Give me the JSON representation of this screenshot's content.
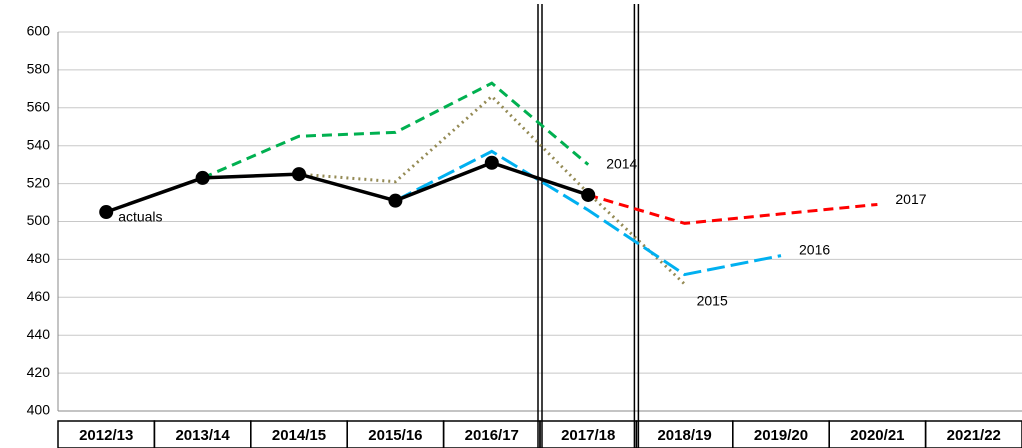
{
  "chart_data": {
    "type": "line",
    "categories": [
      "2012/13",
      "2013/14",
      "2014/15",
      "2015/16",
      "2016/17",
      "2017/18",
      "2018/19",
      "2019/20",
      "2020/21",
      "2021/22"
    ],
    "ylim": [
      400,
      600
    ],
    "yticks": [
      400,
      420,
      440,
      460,
      480,
      500,
      520,
      540,
      560,
      580,
      600
    ],
    "grid": true,
    "series": [
      {
        "name": "2014",
        "color": "#00b050",
        "dash": "10,6",
        "values": [
          null,
          523,
          545,
          547,
          573,
          530,
          null,
          null,
          null,
          null
        ]
      },
      {
        "name": "2015",
        "color": "#948a54",
        "dash": "2,4",
        "values": [
          null,
          523,
          525,
          521,
          566,
          515,
          467,
          null,
          null,
          null
        ]
      },
      {
        "name": "2016",
        "color": "#00b0f0",
        "dash": "18,6",
        "values": [
          null,
          null,
          null,
          511,
          537,
          506,
          472,
          482,
          null,
          null
        ]
      },
      {
        "name": "2017",
        "color": "#ff0000",
        "dash": "10,6",
        "values": [
          null,
          null,
          null,
          null,
          null,
          514,
          499,
          504,
          509,
          null
        ]
      },
      {
        "name": "actuals",
        "color": "#000000",
        "dash": "",
        "markers": true,
        "values": [
          505,
          523,
          525,
          511,
          531,
          514,
          null,
          null,
          null,
          null
        ]
      }
    ]
  }
}
